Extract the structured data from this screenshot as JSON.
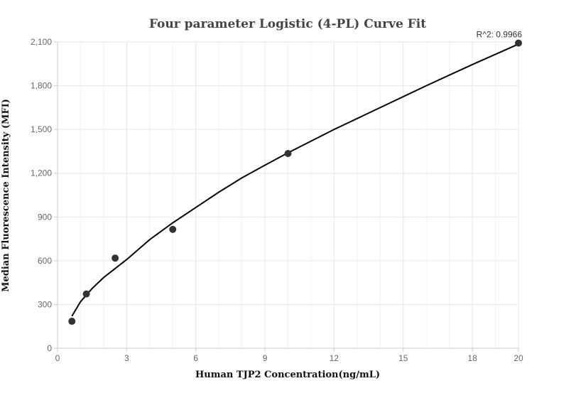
{
  "chart_data": {
    "type": "scatter",
    "title": "Four parameter Logistic (4-PL) Curve Fit",
    "xlabel": "Human TJP2 Concentration(ng/mL)",
    "ylabel": "Median Fluorescence Intensity (MFI)",
    "xlim": [
      0,
      20
    ],
    "ylim": [
      0,
      2100
    ],
    "x_ticks": [
      0,
      3,
      6,
      9,
      12,
      15,
      18,
      20
    ],
    "x_tick_labels": [
      "0",
      "3",
      "6",
      "9",
      "12",
      "15",
      "18",
      "20"
    ],
    "y_ticks": [
      0,
      300,
      600,
      900,
      1200,
      1500,
      1800,
      2100
    ],
    "y_tick_labels": [
      "0",
      "300",
      "600",
      "900",
      "1,200",
      "1,500",
      "1,800",
      "2,100"
    ],
    "grid": true,
    "points": {
      "x": [
        0.625,
        1.25,
        2.5,
        5,
        10,
        20
      ],
      "y": [
        185,
        372,
        618,
        815,
        1335,
        2092
      ]
    },
    "fit_curve": {
      "x": [
        0.625,
        1,
        1.5,
        2,
        3,
        4,
        5,
        6,
        7,
        8,
        9,
        10,
        12,
        14,
        16,
        18,
        20
      ],
      "y": [
        220,
        320,
        410,
        485,
        608,
        745,
        860,
        965,
        1070,
        1168,
        1255,
        1340,
        1500,
        1650,
        1800,
        1945,
        2085
      ]
    },
    "annotation": "R^2: 0.9966",
    "colors": {
      "marker": "#333333",
      "curve": "#000000",
      "grid": "#e6e6e6",
      "axis": "#cccccc"
    }
  }
}
